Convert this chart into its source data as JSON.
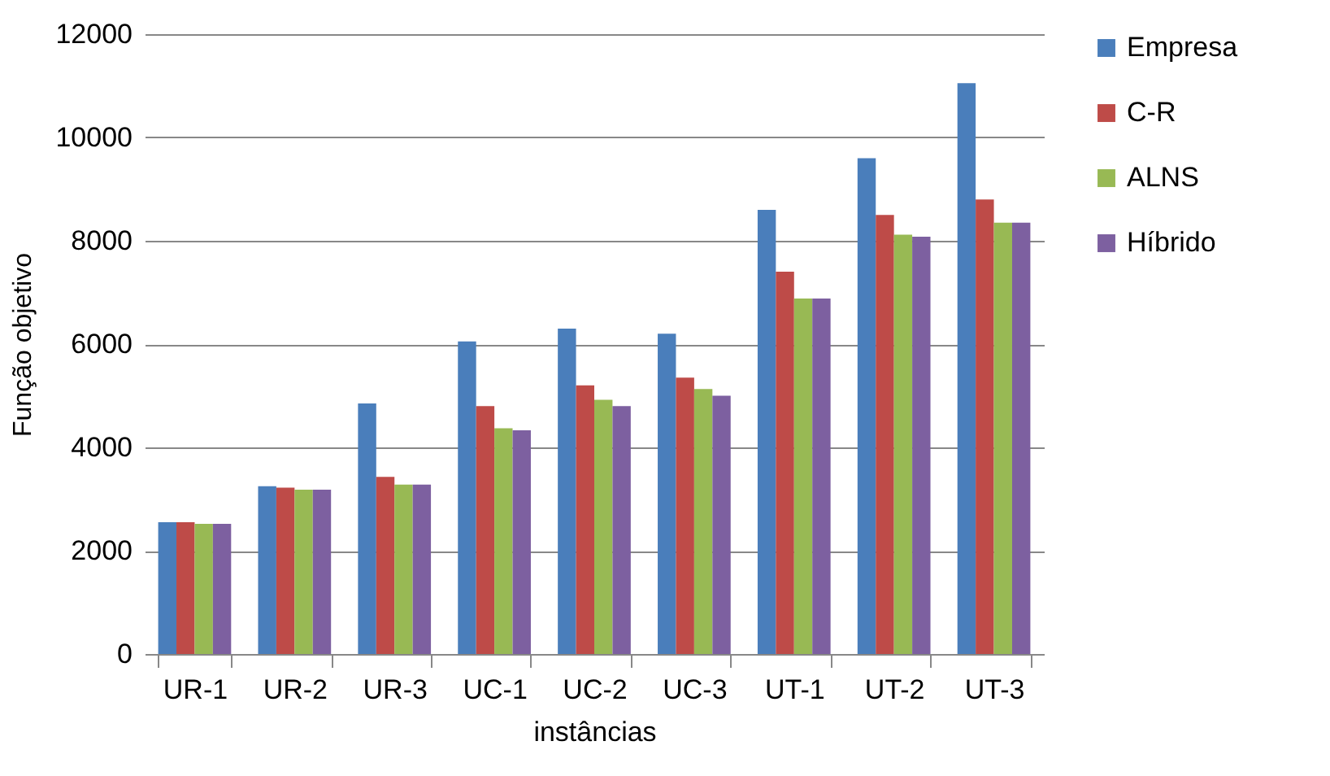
{
  "chart_data": {
    "type": "bar",
    "xlabel": "instâncias",
    "ylabel": "Função objetivo",
    "categories": [
      "UR-1",
      "UR-2",
      "UR-3",
      "UC-1",
      "UC-2",
      "UC-3",
      "UT-1",
      "UT-2",
      "UT-3"
    ],
    "series": [
      {
        "name": "Empresa",
        "color": "#4a7ebb",
        "values": [
          2550,
          3250,
          4850,
          6050,
          6300,
          6200,
          8600,
          9600,
          11050
        ]
      },
      {
        "name": "C-R",
        "color": "#be4b48",
        "values": [
          2550,
          3220,
          3430,
          4800,
          5200,
          5350,
          7400,
          8500,
          8800
        ]
      },
      {
        "name": "ALNS",
        "color": "#98b954",
        "values": [
          2520,
          3180,
          3280,
          4370,
          4920,
          5130,
          6880,
          8120,
          8350
        ]
      },
      {
        "name": "Híbrido",
        "color": "#7d60a0",
        "values": [
          2520,
          3180,
          3280,
          4330,
          4800,
          5000,
          6880,
          8080,
          8350
        ]
      }
    ],
    "ylim": [
      0,
      12000
    ],
    "yticks": [
      0,
      2000,
      4000,
      6000,
      8000,
      10000,
      12000
    ],
    "grid": "y",
    "legend": "right"
  }
}
